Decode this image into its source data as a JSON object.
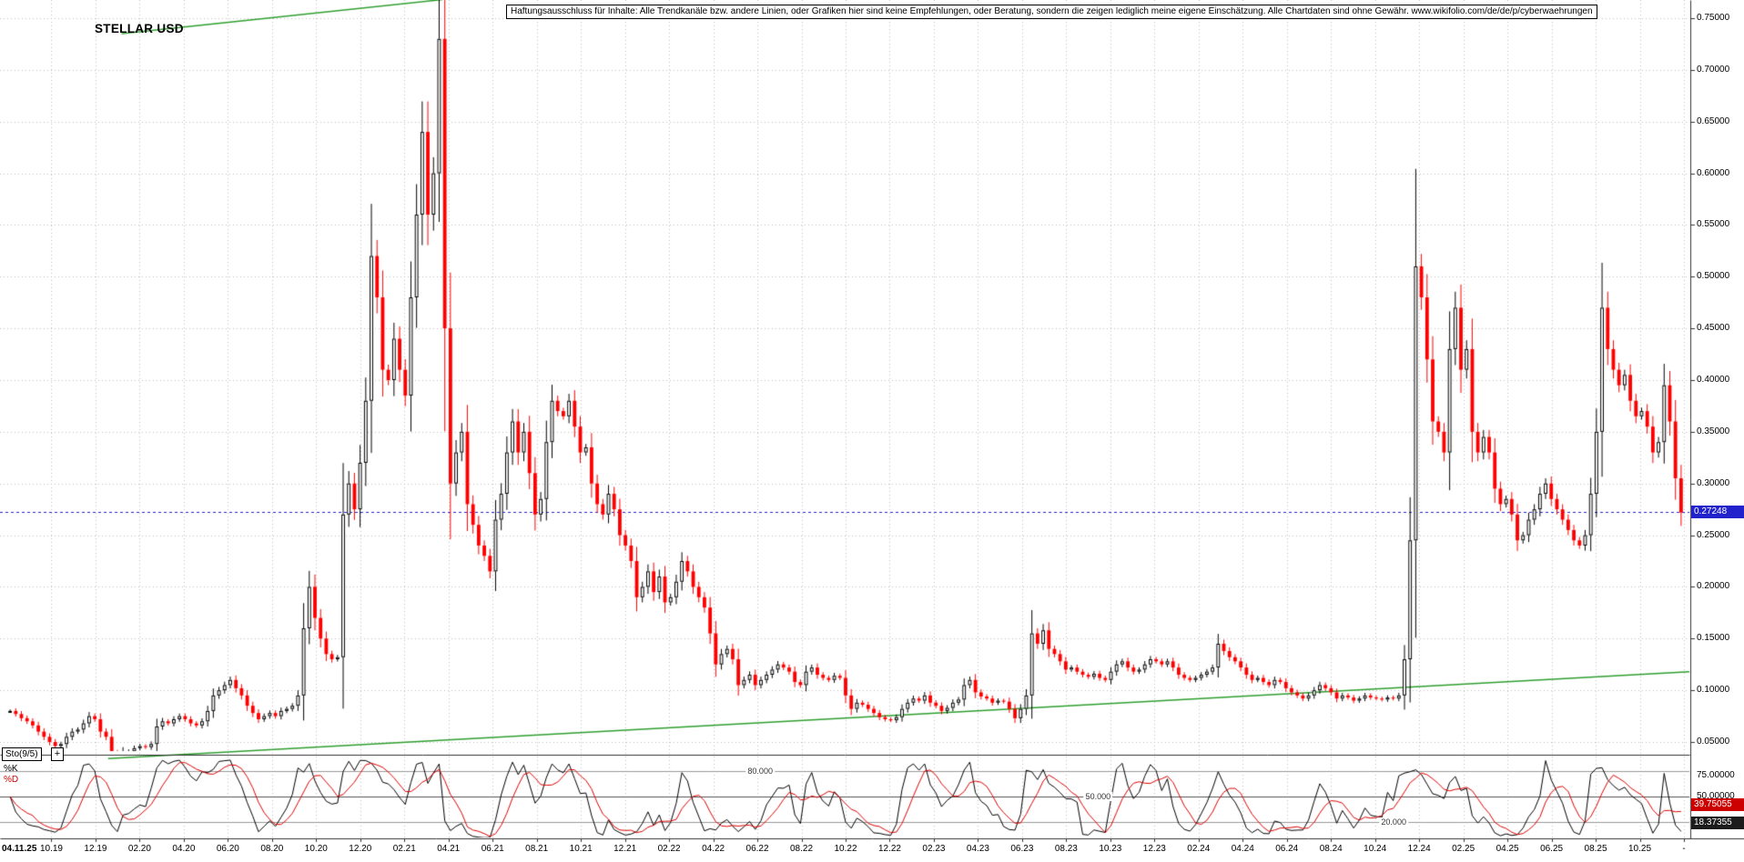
{
  "title": "STELLAR USD",
  "disclaimer": "Haftungsausschluss für Inhalte: Alle Trendkanäle bzw. andere Linien, oder Grafiken hier sind keine Empfehlungen, oder Beratung, sondern die zeigen lediglich meine eigene Einschätzung. Alle Chartdaten sind ohne Gewähr.  www.wikifolio.com/de/de/p/cyberwaehrungen",
  "indicator": {
    "name": "Sto(9/5)",
    "plus_label": "+",
    "k_label": "%K",
    "d_label": "%D",
    "k_value": "39.75055",
    "d_value": "18.37355",
    "right_labels": [
      "75.00000",
      "50.00000"
    ],
    "level_labels": [
      "80.000",
      "50.000",
      "20.000"
    ]
  },
  "colors": {
    "up": "#000000",
    "down": "#ff0000",
    "grid": "#bdbdbd",
    "trend_line": "#2e9e2e",
    "current_price_line": "#2222cc",
    "current_price_bg": "#2222cc",
    "k_line": "#000000",
    "d_line": "#dd0000",
    "k_value_bg": "#cc0000",
    "d_value_bg": "#1c1c1c",
    "frame": "#333333"
  },
  "chart_data": {
    "type": "candlestick",
    "title": "STELLAR USD",
    "ylim": [
      0.05,
      0.75
    ],
    "grid": true,
    "ylabel_ticks": [
      "0.75000",
      "0.70000",
      "0.65000",
      "0.60000",
      "0.55000",
      "0.50000",
      "0.45000",
      "0.40000",
      "0.35000",
      "0.30000",
      "0.25000",
      "0.20000",
      "0.15000",
      "0.10000",
      "0.05000"
    ],
    "x_ticks": [
      "04.11.25",
      "10.19",
      "12.19",
      "02.20",
      "04.20",
      "06.20",
      "08.20",
      "10.20",
      "12.20",
      "02.21",
      "04.21",
      "06.21",
      "08.21",
      "10.21",
      "12.21",
      "02.22",
      "04.22",
      "06.22",
      "08.22",
      "10.22",
      "12.22",
      "02.23",
      "04.23",
      "06.23",
      "08.23",
      "10.23",
      "12.23",
      "02.24",
      "04.24",
      "06.24",
      "08.24",
      "10.24",
      "12.24",
      "02.25",
      "04.25",
      "06.25",
      "08.25",
      "10.25",
      "-"
    ],
    "current_price": 0.27248,
    "current_price_label": "0.27248",
    "closes": [
      0.08,
      0.077,
      0.073,
      0.07,
      0.066,
      0.06,
      0.055,
      0.05,
      0.046,
      0.048,
      0.055,
      0.06,
      0.062,
      0.068,
      0.075,
      0.072,
      0.06,
      0.055,
      0.038,
      0.03,
      0.04,
      0.041,
      0.044,
      0.046,
      0.045,
      0.048,
      0.065,
      0.07,
      0.068,
      0.072,
      0.075,
      0.072,
      0.068,
      0.066,
      0.07,
      0.08,
      0.095,
      0.1,
      0.105,
      0.11,
      0.102,
      0.095,
      0.085,
      0.078,
      0.072,
      0.075,
      0.078,
      0.075,
      0.08,
      0.082,
      0.085,
      0.095,
      0.16,
      0.2,
      0.17,
      0.15,
      0.135,
      0.13,
      0.132,
      0.27,
      0.3,
      0.275,
      0.32,
      0.38,
      0.52,
      0.48,
      0.41,
      0.4,
      0.44,
      0.41,
      0.385,
      0.48,
      0.56,
      0.64,
      0.56,
      0.6,
      0.73,
      0.45,
      0.3,
      0.33,
      0.35,
      0.28,
      0.26,
      0.24,
      0.23,
      0.215,
      0.265,
      0.29,
      0.33,
      0.36,
      0.33,
      0.35,
      0.31,
      0.27,
      0.285,
      0.34,
      0.38,
      0.37,
      0.365,
      0.38,
      0.355,
      0.33,
      0.335,
      0.3,
      0.28,
      0.27,
      0.29,
      0.275,
      0.25,
      0.24,
      0.225,
      0.19,
      0.2,
      0.215,
      0.195,
      0.21,
      0.185,
      0.19,
      0.205,
      0.225,
      0.215,
      0.2,
      0.19,
      0.18,
      0.155,
      0.125,
      0.135,
      0.14,
      0.13,
      0.105,
      0.11,
      0.115,
      0.105,
      0.11,
      0.115,
      0.12,
      0.125,
      0.122,
      0.118,
      0.108,
      0.105,
      0.118,
      0.122,
      0.115,
      0.112,
      0.11,
      0.114,
      0.112,
      0.095,
      0.082,
      0.088,
      0.086,
      0.082,
      0.078,
      0.074,
      0.072,
      0.071,
      0.074,
      0.082,
      0.088,
      0.092,
      0.09,
      0.095,
      0.088,
      0.085,
      0.08,
      0.083,
      0.088,
      0.091,
      0.105,
      0.11,
      0.098,
      0.094,
      0.092,
      0.088,
      0.09,
      0.089,
      0.082,
      0.073,
      0.082,
      0.095,
      0.155,
      0.145,
      0.158,
      0.14,
      0.135,
      0.128,
      0.12,
      0.122,
      0.118,
      0.115,
      0.113,
      0.116,
      0.112,
      0.11,
      0.118,
      0.125,
      0.128,
      0.122,
      0.118,
      0.12,
      0.125,
      0.13,
      0.128,
      0.125,
      0.128,
      0.122,
      0.115,
      0.112,
      0.11,
      0.112,
      0.115,
      0.118,
      0.122,
      0.145,
      0.138,
      0.132,
      0.128,
      0.122,
      0.115,
      0.11,
      0.112,
      0.108,
      0.105,
      0.11,
      0.108,
      0.102,
      0.098,
      0.095,
      0.092,
      0.095,
      0.1,
      0.105,
      0.102,
      0.098,
      0.092,
      0.095,
      0.093,
      0.09,
      0.092,
      0.095,
      0.093,
      0.092,
      0.091,
      0.093,
      0.092,
      0.095,
      0.13,
      0.245,
      0.51,
      0.48,
      0.42,
      0.36,
      0.35,
      0.33,
      0.43,
      0.47,
      0.41,
      0.43,
      0.35,
      0.33,
      0.345,
      0.33,
      0.295,
      0.28,
      0.285,
      0.27,
      0.245,
      0.25,
      0.265,
      0.275,
      0.29,
      0.3,
      0.285,
      0.275,
      0.265,
      0.255,
      0.245,
      0.24,
      0.25,
      0.29,
      0.35,
      0.47,
      0.43,
      0.41,
      0.395,
      0.405,
      0.38,
      0.365,
      0.37,
      0.355,
      0.33,
      0.34,
      0.395,
      0.36,
      0.305,
      0.272
    ],
    "trendlines": [
      {
        "x1_frac": 0.072,
        "p1": 0.735,
        "x2_frac": 0.262,
        "p2": 0.768
      },
      {
        "x1_frac": 0.064,
        "p1": 0.034,
        "x2_frac": 1.0,
        "p2": 0.118
      }
    ],
    "stochastic": {
      "type": "stochastic",
      "k_period": 9,
      "d_period": 5,
      "levels": [
        80,
        50,
        20
      ],
      "k_last": 39.75055,
      "d_last": 18.37355
    }
  }
}
